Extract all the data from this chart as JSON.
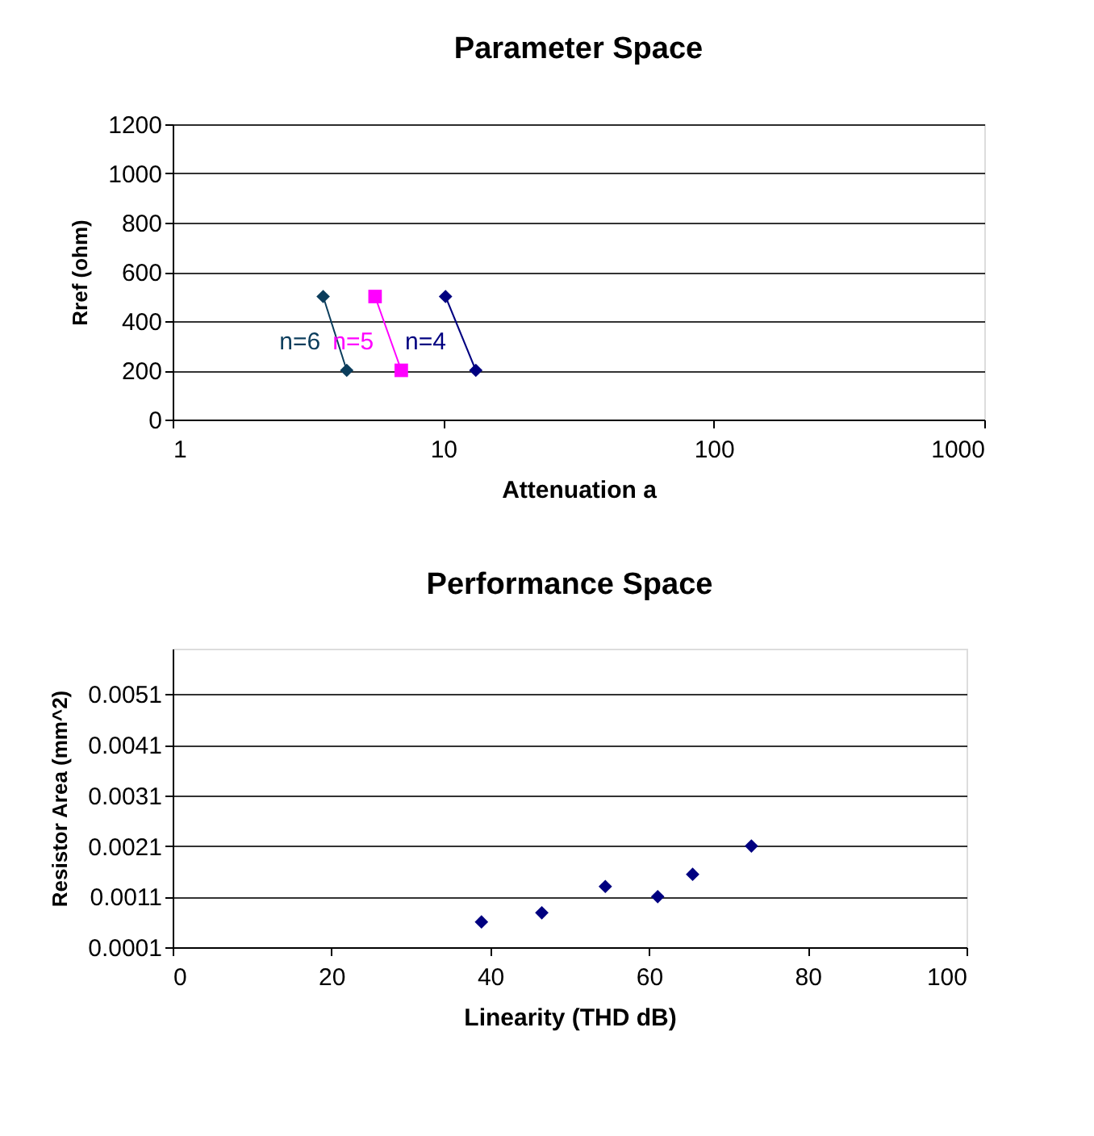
{
  "chart_data": [
    {
      "type": "line",
      "title": "Parameter Space",
      "xlabel": "Attenuation a",
      "ylabel": "Rref (ohm)",
      "log": "x",
      "xlim": [
        1,
        1000
      ],
      "xticks": [
        1,
        10,
        100,
        1000
      ],
      "ylim": [
        0,
        1200
      ],
      "yticks": [
        0,
        200,
        400,
        600,
        800,
        1000,
        1200
      ],
      "grid": "y",
      "series": [
        {
          "name": "n=6",
          "color": "#0b3d5c",
          "marker": "diamond",
          "x": [
            3.6,
            4.4
          ],
          "values": [
            500,
            200
          ]
        },
        {
          "name": "n=5",
          "color": "#ff00ff",
          "marker": "square",
          "x": [
            5.6,
            7.0
          ],
          "values": [
            500,
            200
          ]
        },
        {
          "name": "n=4",
          "color": "#000080",
          "marker": "diamond",
          "x": [
            10.2,
            13.2
          ],
          "values": [
            500,
            200
          ]
        }
      ]
    },
    {
      "type": "scatter",
      "title": "Performance Space",
      "xlabel": "Linearity (THD dB)",
      "ylabel": "Resistor Area (mm^2)",
      "xlim": [
        0,
        100
      ],
      "xticks": [
        0,
        20,
        40,
        60,
        80,
        100
      ],
      "ylim": [
        0.0001,
        0.006
      ],
      "yticks": [
        0.0001,
        0.0011,
        0.0021,
        0.0031,
        0.0041,
        0.0051
      ],
      "grid": "y",
      "marker": "diamond",
      "series": [
        {
          "color": "#000080",
          "x": [
            38.9,
            46.5,
            54.5,
            61.1,
            65.5,
            72.9
          ],
          "values": [
            0.0006,
            0.00078,
            0.0013,
            0.0011,
            0.00154,
            0.0021
          ]
        }
      ]
    }
  ]
}
